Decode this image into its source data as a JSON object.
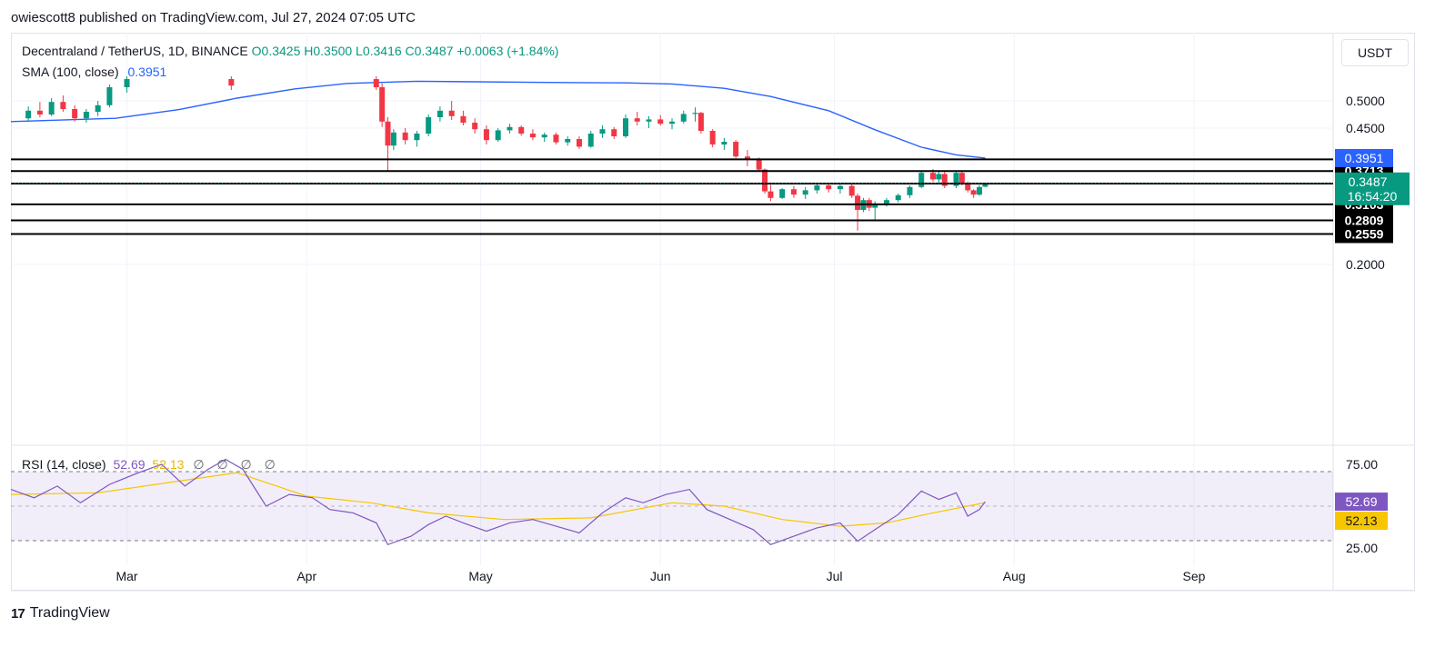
{
  "header": {
    "publisher_text": "owiescott8 published on TradingView.com, Jul 27, 2024 07:05 UTC"
  },
  "legend": {
    "symbol": "Decentraland / TetherUS, 1D, BINANCE",
    "ohlc": "O0.3425 H0.3500 L0.3416 C0.3487 +0.0063 (+1.84%)",
    "sma_label": "SMA (100, close)",
    "sma_value": "0.3951",
    "rsi_label": "RSI (14, close)",
    "rsi_value": "52.69",
    "rsi_ma_value": "52.13",
    "rsi_extra": "∅ ∅ ∅ ∅"
  },
  "currency_button": "USDT",
  "footer": {
    "brand": "TradingView",
    "logo_text": "17"
  },
  "colors": {
    "up": "#089981",
    "down": "#f23645",
    "sma": "#2962ff",
    "rsi": "#7e57c2",
    "rsi_ma": "#f7c600",
    "level": "#000000"
  },
  "chart_data": {
    "type": "candlestick",
    "symbol": "Decentraland / TetherUS",
    "timeframe": "1D",
    "exchange": "BINANCE",
    "x_ticks": [
      "Mar",
      "Apr",
      "May",
      "Jun",
      "Jul",
      "Aug",
      "Sep"
    ],
    "y_ticks": [
      "0.5000",
      "0.4500",
      "0.2000"
    ],
    "ylim": [
      0.19,
      0.545
    ],
    "last_price": "0.3487",
    "countdown": "16:54:20",
    "sma_last": "0.3951",
    "levels": [
      "0.3927",
      "0.3713",
      "0.3483",
      "0.3103",
      "0.2809",
      "0.2559"
    ],
    "candles": [
      {
        "date": "2024-02-13",
        "o": 0.468,
        "h": 0.49,
        "l": 0.462,
        "c": 0.482
      },
      {
        "date": "2024-02-15",
        "o": 0.482,
        "h": 0.498,
        "l": 0.47,
        "c": 0.475
      },
      {
        "date": "2024-02-17",
        "o": 0.475,
        "h": 0.505,
        "l": 0.472,
        "c": 0.498
      },
      {
        "date": "2024-02-19",
        "o": 0.498,
        "h": 0.51,
        "l": 0.48,
        "c": 0.485
      },
      {
        "date": "2024-02-21",
        "o": 0.485,
        "h": 0.492,
        "l": 0.462,
        "c": 0.468
      },
      {
        "date": "2024-02-23",
        "o": 0.468,
        "h": 0.485,
        "l": 0.46,
        "c": 0.48
      },
      {
        "date": "2024-02-25",
        "o": 0.48,
        "h": 0.5,
        "l": 0.472,
        "c": 0.492
      },
      {
        "date": "2024-02-27",
        "o": 0.492,
        "h": 0.53,
        "l": 0.488,
        "c": 0.525
      },
      {
        "date": "2024-03-01",
        "o": 0.525,
        "h": 0.545,
        "l": 0.515,
        "c": 0.54
      },
      {
        "date": "2024-03-19",
        "o": 0.54,
        "h": 0.545,
        "l": 0.52,
        "c": 0.528
      },
      {
        "date": "2024-04-13",
        "o": 0.54,
        "h": 0.545,
        "l": 0.52,
        "c": 0.525
      },
      {
        "date": "2024-04-14",
        "o": 0.525,
        "h": 0.532,
        "l": 0.452,
        "c": 0.462
      },
      {
        "date": "2024-04-15",
        "o": 0.462,
        "h": 0.47,
        "l": 0.372,
        "c": 0.418
      },
      {
        "date": "2024-04-16",
        "o": 0.418,
        "h": 0.448,
        "l": 0.41,
        "c": 0.442
      },
      {
        "date": "2024-04-18",
        "o": 0.442,
        "h": 0.45,
        "l": 0.42,
        "c": 0.428
      },
      {
        "date": "2024-04-20",
        "o": 0.428,
        "h": 0.445,
        "l": 0.416,
        "c": 0.44
      },
      {
        "date": "2024-04-22",
        "o": 0.44,
        "h": 0.475,
        "l": 0.435,
        "c": 0.47
      },
      {
        "date": "2024-04-24",
        "o": 0.47,
        "h": 0.49,
        "l": 0.462,
        "c": 0.482
      },
      {
        "date": "2024-04-26",
        "o": 0.482,
        "h": 0.5,
        "l": 0.465,
        "c": 0.472
      },
      {
        "date": "2024-04-28",
        "o": 0.472,
        "h": 0.482,
        "l": 0.455,
        "c": 0.46
      },
      {
        "date": "2024-04-30",
        "o": 0.46,
        "h": 0.468,
        "l": 0.44,
        "c": 0.448
      },
      {
        "date": "2024-05-02",
        "o": 0.448,
        "h": 0.455,
        "l": 0.42,
        "c": 0.428
      },
      {
        "date": "2024-05-04",
        "o": 0.428,
        "h": 0.45,
        "l": 0.425,
        "c": 0.446
      },
      {
        "date": "2024-05-06",
        "o": 0.446,
        "h": 0.458,
        "l": 0.44,
        "c": 0.452
      },
      {
        "date": "2024-05-08",
        "o": 0.452,
        "h": 0.455,
        "l": 0.436,
        "c": 0.44
      },
      {
        "date": "2024-05-10",
        "o": 0.44,
        "h": 0.448,
        "l": 0.428,
        "c": 0.433
      },
      {
        "date": "2024-05-12",
        "o": 0.433,
        "h": 0.442,
        "l": 0.425,
        "c": 0.438
      },
      {
        "date": "2024-05-14",
        "o": 0.438,
        "h": 0.442,
        "l": 0.42,
        "c": 0.424
      },
      {
        "date": "2024-05-16",
        "o": 0.424,
        "h": 0.435,
        "l": 0.418,
        "c": 0.43
      },
      {
        "date": "2024-05-18",
        "o": 0.43,
        "h": 0.435,
        "l": 0.412,
        "c": 0.416
      },
      {
        "date": "2024-05-20",
        "o": 0.416,
        "h": 0.445,
        "l": 0.414,
        "c": 0.44
      },
      {
        "date": "2024-05-22",
        "o": 0.44,
        "h": 0.455,
        "l": 0.432,
        "c": 0.448
      },
      {
        "date": "2024-05-24",
        "o": 0.448,
        "h": 0.452,
        "l": 0.43,
        "c": 0.435
      },
      {
        "date": "2024-05-26",
        "o": 0.435,
        "h": 0.475,
        "l": 0.432,
        "c": 0.468
      },
      {
        "date": "2024-05-28",
        "o": 0.468,
        "h": 0.48,
        "l": 0.455,
        "c": 0.462
      },
      {
        "date": "2024-05-30",
        "o": 0.462,
        "h": 0.472,
        "l": 0.45,
        "c": 0.466
      },
      {
        "date": "2024-06-01",
        "o": 0.466,
        "h": 0.474,
        "l": 0.455,
        "c": 0.458
      },
      {
        "date": "2024-06-03",
        "o": 0.458,
        "h": 0.468,
        "l": 0.448,
        "c": 0.462
      },
      {
        "date": "2024-06-05",
        "o": 0.462,
        "h": 0.482,
        "l": 0.458,
        "c": 0.476
      },
      {
        "date": "2024-06-07",
        "o": 0.476,
        "h": 0.488,
        "l": 0.462,
        "c": 0.478
      },
      {
        "date": "2024-06-08",
        "o": 0.478,
        "h": 0.48,
        "l": 0.44,
        "c": 0.445
      },
      {
        "date": "2024-06-10",
        "o": 0.445,
        "h": 0.448,
        "l": 0.415,
        "c": 0.42
      },
      {
        "date": "2024-06-12",
        "o": 0.42,
        "h": 0.432,
        "l": 0.41,
        "c": 0.425
      },
      {
        "date": "2024-06-14",
        "o": 0.425,
        "h": 0.428,
        "l": 0.395,
        "c": 0.398
      },
      {
        "date": "2024-06-16",
        "o": 0.398,
        "h": 0.41,
        "l": 0.38,
        "c": 0.392
      },
      {
        "date": "2024-06-18",
        "o": 0.392,
        "h": 0.396,
        "l": 0.37,
        "c": 0.374
      },
      {
        "date": "2024-06-19",
        "o": 0.374,
        "h": 0.376,
        "l": 0.33,
        "c": 0.334
      },
      {
        "date": "2024-06-20",
        "o": 0.334,
        "h": 0.346,
        "l": 0.316,
        "c": 0.322
      },
      {
        "date": "2024-06-22",
        "o": 0.322,
        "h": 0.34,
        "l": 0.32,
        "c": 0.338
      },
      {
        "date": "2024-06-24",
        "o": 0.338,
        "h": 0.344,
        "l": 0.322,
        "c": 0.328
      },
      {
        "date": "2024-06-26",
        "o": 0.328,
        "h": 0.342,
        "l": 0.32,
        "c": 0.336
      },
      {
        "date": "2024-06-28",
        "o": 0.336,
        "h": 0.348,
        "l": 0.33,
        "c": 0.345
      },
      {
        "date": "2024-06-30",
        "o": 0.345,
        "h": 0.35,
        "l": 0.332,
        "c": 0.338
      },
      {
        "date": "2024-07-02",
        "o": 0.338,
        "h": 0.346,
        "l": 0.33,
        "c": 0.344
      },
      {
        "date": "2024-07-04",
        "o": 0.344,
        "h": 0.348,
        "l": 0.322,
        "c": 0.326
      },
      {
        "date": "2024-07-05",
        "o": 0.326,
        "h": 0.33,
        "l": 0.262,
        "c": 0.3
      },
      {
        "date": "2024-07-06",
        "o": 0.3,
        "h": 0.322,
        "l": 0.296,
        "c": 0.318
      },
      {
        "date": "2024-07-07",
        "o": 0.318,
        "h": 0.322,
        "l": 0.298,
        "c": 0.304
      },
      {
        "date": "2024-07-08",
        "o": 0.304,
        "h": 0.316,
        "l": 0.282,
        "c": 0.312
      },
      {
        "date": "2024-07-10",
        "o": 0.312,
        "h": 0.322,
        "l": 0.306,
        "c": 0.318
      },
      {
        "date": "2024-07-12",
        "o": 0.318,
        "h": 0.33,
        "l": 0.314,
        "c": 0.327
      },
      {
        "date": "2024-07-14",
        "o": 0.327,
        "h": 0.345,
        "l": 0.322,
        "c": 0.342
      },
      {
        "date": "2024-07-16",
        "o": 0.342,
        "h": 0.372,
        "l": 0.34,
        "c": 0.368
      },
      {
        "date": "2024-07-18",
        "o": 0.368,
        "h": 0.375,
        "l": 0.352,
        "c": 0.356
      },
      {
        "date": "2024-07-19",
        "o": 0.356,
        "h": 0.372,
        "l": 0.348,
        "c": 0.366
      },
      {
        "date": "2024-07-20",
        "o": 0.366,
        "h": 0.37,
        "l": 0.34,
        "c": 0.344
      },
      {
        "date": "2024-07-22",
        "o": 0.344,
        "h": 0.372,
        "l": 0.34,
        "c": 0.368
      },
      {
        "date": "2024-07-23",
        "o": 0.368,
        "h": 0.37,
        "l": 0.345,
        "c": 0.35
      },
      {
        "date": "2024-07-24",
        "o": 0.35,
        "h": 0.352,
        "l": 0.332,
        "c": 0.336
      },
      {
        "date": "2024-07-25",
        "o": 0.336,
        "h": 0.338,
        "l": 0.322,
        "c": 0.328
      },
      {
        "date": "2024-07-26",
        "o": 0.328,
        "h": 0.346,
        "l": 0.326,
        "c": 0.342
      },
      {
        "date": "2024-07-27",
        "o": 0.3425,
        "h": 0.35,
        "l": 0.3416,
        "c": 0.3487
      }
    ],
    "sma_100": [
      {
        "date": "2024-02-10",
        "v": 0.462
      },
      {
        "date": "2024-02-28",
        "v": 0.468
      },
      {
        "date": "2024-03-10",
        "v": 0.484
      },
      {
        "date": "2024-03-20",
        "v": 0.505
      },
      {
        "date": "2024-03-30",
        "v": 0.522
      },
      {
        "date": "2024-04-08",
        "v": 0.532
      },
      {
        "date": "2024-04-20",
        "v": 0.536
      },
      {
        "date": "2024-05-10",
        "v": 0.534
      },
      {
        "date": "2024-05-26",
        "v": 0.533
      },
      {
        "date": "2024-06-03",
        "v": 0.531
      },
      {
        "date": "2024-06-12",
        "v": 0.523
      },
      {
        "date": "2024-06-20",
        "v": 0.508
      },
      {
        "date": "2024-06-30",
        "v": 0.482
      },
      {
        "date": "2024-07-08",
        "v": 0.447
      },
      {
        "date": "2024-07-16",
        "v": 0.415
      },
      {
        "date": "2024-07-22",
        "v": 0.401
      },
      {
        "date": "2024-07-27",
        "v": 0.3951
      }
    ],
    "rsi": {
      "label": "RSI (14, close)",
      "last": "52.69",
      "ma_last": "52.13",
      "levels": [
        "75.00",
        "25.00"
      ],
      "ylim": [
        20,
        80
      ],
      "rsi_values": [
        {
          "date": "2024-02-10",
          "v": 60
        },
        {
          "date": "2024-02-14",
          "v": 55
        },
        {
          "date": "2024-02-18",
          "v": 62
        },
        {
          "date": "2024-02-22",
          "v": 52
        },
        {
          "date": "2024-02-27",
          "v": 63
        },
        {
          "date": "2024-03-03",
          "v": 70
        },
        {
          "date": "2024-03-07",
          "v": 75
        },
        {
          "date": "2024-03-11",
          "v": 62
        },
        {
          "date": "2024-03-15",
          "v": 72
        },
        {
          "date": "2024-03-18",
          "v": 78
        },
        {
          "date": "2024-03-21",
          "v": 72
        },
        {
          "date": "2024-03-25",
          "v": 50
        },
        {
          "date": "2024-03-29",
          "v": 57
        },
        {
          "date": "2024-04-02",
          "v": 55
        },
        {
          "date": "2024-04-05",
          "v": 48
        },
        {
          "date": "2024-04-09",
          "v": 46
        },
        {
          "date": "2024-04-13",
          "v": 40
        },
        {
          "date": "2024-04-15",
          "v": 27
        },
        {
          "date": "2024-04-19",
          "v": 32
        },
        {
          "date": "2024-04-22",
          "v": 39
        },
        {
          "date": "2024-04-25",
          "v": 44
        },
        {
          "date": "2024-04-28",
          "v": 40
        },
        {
          "date": "2024-05-02",
          "v": 35
        },
        {
          "date": "2024-05-06",
          "v": 40
        },
        {
          "date": "2024-05-10",
          "v": 42
        },
        {
          "date": "2024-05-14",
          "v": 38
        },
        {
          "date": "2024-05-18",
          "v": 34
        },
        {
          "date": "2024-05-22",
          "v": 46
        },
        {
          "date": "2024-05-26",
          "v": 55
        },
        {
          "date": "2024-05-29",
          "v": 52
        },
        {
          "date": "2024-06-02",
          "v": 57
        },
        {
          "date": "2024-06-06",
          "v": 60
        },
        {
          "date": "2024-06-09",
          "v": 48
        },
        {
          "date": "2024-06-13",
          "v": 42
        },
        {
          "date": "2024-06-17",
          "v": 36
        },
        {
          "date": "2024-06-20",
          "v": 27
        },
        {
          "date": "2024-06-24",
          "v": 32
        },
        {
          "date": "2024-06-28",
          "v": 37
        },
        {
          "date": "2024-07-02",
          "v": 40
        },
        {
          "date": "2024-07-05",
          "v": 29
        },
        {
          "date": "2024-07-08",
          "v": 36
        },
        {
          "date": "2024-07-12",
          "v": 45
        },
        {
          "date": "2024-07-16",
          "v": 59
        },
        {
          "date": "2024-07-19",
          "v": 54
        },
        {
          "date": "2024-07-22",
          "v": 58
        },
        {
          "date": "2024-07-24",
          "v": 44
        },
        {
          "date": "2024-07-26",
          "v": 48
        },
        {
          "date": "2024-07-27",
          "v": 52.69
        }
      ],
      "ma_values": [
        {
          "date": "2024-02-10",
          "v": 57
        },
        {
          "date": "2024-02-25",
          "v": 58
        },
        {
          "date": "2024-03-10",
          "v": 65
        },
        {
          "date": "2024-03-20",
          "v": 70
        },
        {
          "date": "2024-04-01",
          "v": 56
        },
        {
          "date": "2024-04-12",
          "v": 52
        },
        {
          "date": "2024-04-22",
          "v": 46
        },
        {
          "date": "2024-05-05",
          "v": 42
        },
        {
          "date": "2024-05-20",
          "v": 43
        },
        {
          "date": "2024-06-03",
          "v": 52
        },
        {
          "date": "2024-06-12",
          "v": 50
        },
        {
          "date": "2024-06-22",
          "v": 42
        },
        {
          "date": "2024-07-02",
          "v": 38
        },
        {
          "date": "2024-07-10",
          "v": 40
        },
        {
          "date": "2024-07-18",
          "v": 46
        },
        {
          "date": "2024-07-27",
          "v": 52.13
        }
      ]
    }
  }
}
